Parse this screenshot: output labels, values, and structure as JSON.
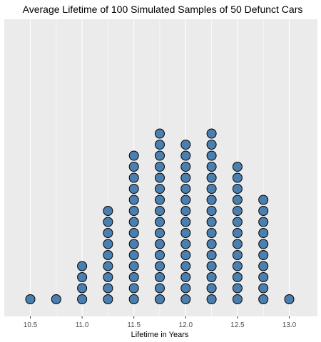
{
  "chart_data": {
    "type": "dot",
    "title": "Average Lifetime of 100 Simulated Samples of 50 Defunct Cars",
    "xlabel": "Lifetime in Years",
    "ylabel": "",
    "xlim": [
      10.45,
      13.05
    ],
    "x_ticks": [
      10.5,
      11.0,
      11.5,
      12.0,
      12.5,
      13.0
    ],
    "x_tick_labels": [
      "10.5",
      "11.0",
      "11.5",
      "12.0",
      "12.5",
      "13.0"
    ],
    "bins": [
      10.5,
      10.75,
      11.0,
      11.25,
      11.5,
      11.75,
      12.0,
      12.25,
      12.5,
      12.75,
      13.0
    ],
    "counts": [
      1,
      1,
      4,
      9,
      14,
      16,
      15,
      16,
      13,
      10,
      1
    ],
    "grid": true,
    "y_axis_shown": false,
    "colors": {
      "panel_background": "#ebebeb",
      "grid": "#ffffff",
      "dot_fill": "#4a7fb0",
      "dot_stroke": "#000000",
      "text": "#000000",
      "tick_text": "#4d4d4d"
    }
  }
}
